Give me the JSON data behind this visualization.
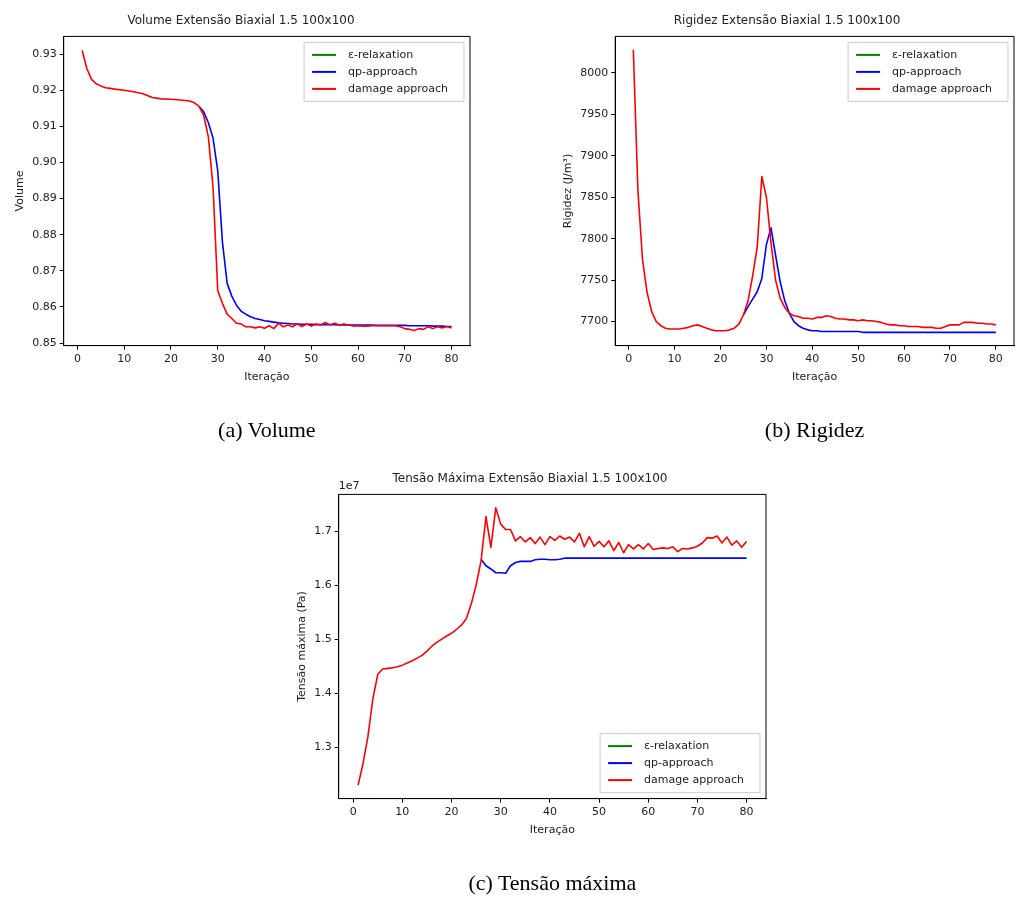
{
  "chart_data": [
    {
      "type": "line",
      "title": "Volume Extensão Biaxial 1.5 100x100",
      "xlabel": "Iteração",
      "ylabel": "Volume",
      "annotations": [
        "(a) Volume"
      ],
      "legend": "top right",
      "xlim": [
        -2.95,
        83.95
      ],
      "xticks": [
        0,
        10,
        20,
        30,
        40,
        50,
        60,
        70,
        80
      ],
      "ylim": [
        0.8493,
        0.9349
      ],
      "yticks": [
        0.85,
        0.86,
        0.87,
        0.88,
        0.89,
        {
          "value": 0.9,
          "label": "0.90"
        },
        0.91,
        0.92,
        0.93
      ],
      "x": [
        1,
        2,
        3,
        4,
        5,
        6,
        7,
        8,
        10,
        12,
        14,
        16,
        18,
        20,
        22,
        24,
        25,
        26,
        27,
        28,
        29,
        30,
        31,
        32,
        33,
        34,
        35,
        36,
        37,
        38,
        39,
        40,
        41,
        42,
        43,
        44,
        45,
        46,
        47,
        48,
        49,
        50,
        51,
        52,
        53,
        54,
        55,
        56,
        57,
        58,
        59,
        60,
        61,
        62,
        63,
        64,
        65,
        66,
        67,
        68,
        69,
        70,
        71,
        72,
        73,
        74,
        75,
        76,
        77,
        78,
        79,
        80
      ],
      "series": [
        {
          "name": "ε-relaxation",
          "color": "#008000",
          "values": [
            null,
            null,
            null,
            null,
            null,
            null,
            null,
            null,
            null,
            null,
            null,
            null,
            null,
            null,
            null,
            null,
            null,
            null,
            null,
            null,
            null,
            null,
            null,
            null,
            null,
            null,
            null,
            null,
            null,
            null,
            null,
            null,
            null,
            null,
            null,
            null,
            null,
            null,
            null,
            null,
            null,
            null,
            null,
            null,
            null,
            null,
            null,
            null,
            null,
            null,
            null,
            null,
            null,
            null,
            null,
            null,
            null,
            null,
            null,
            null,
            null,
            null,
            null,
            null,
            null,
            null,
            null,
            null,
            null,
            null,
            null,
            null
          ]
        },
        {
          "name": "qp-approach",
          "color": "#0000ff",
          "values": [
            null,
            null,
            null,
            null,
            null,
            null,
            null,
            null,
            null,
            null,
            null,
            null,
            null,
            null,
            null,
            null,
            null,
            0.9155,
            0.914,
            0.911,
            0.9067,
            0.8977,
            0.878,
            0.8666,
            0.863,
            0.8605,
            0.8588,
            0.858,
            0.8573,
            0.8568,
            0.8565,
            0.8562,
            0.856,
            0.8558,
            0.8556,
            0.8555,
            0.8554,
            0.8553,
            0.8553,
            0.8552,
            0.8552,
            0.8552,
            0.8551,
            0.8551,
            0.8551,
            0.8551,
            0.8551,
            0.855,
            0.855,
            0.855,
            0.855,
            0.855,
            0.855,
            0.855,
            0.855,
            0.8549,
            0.8549,
            0.8549,
            0.8549,
            0.8549,
            0.8549,
            0.8549,
            0.8548,
            0.8548,
            0.8548,
            0.8548,
            0.8548,
            0.8547,
            0.8547,
            0.8547,
            0.8546,
            0.8546
          ]
        },
        {
          "name": "damage approach",
          "color": "#ff0000",
          "values": [
            0.931,
            0.926,
            0.923,
            0.9218,
            0.9212,
            0.9207,
            0.9205,
            0.9203,
            0.92,
            0.9196,
            0.919,
            0.918,
            0.9176,
            0.9175,
            0.9173,
            0.917,
            0.9165,
            0.9155,
            0.913,
            0.907,
            0.893,
            0.8645,
            0.861,
            0.858,
            0.8568,
            0.8555,
            0.8553,
            0.8545,
            0.8545,
            0.8542,
            0.8545,
            0.8541,
            0.8548,
            0.854,
            0.8555,
            0.8545,
            0.855,
            0.8545,
            0.8553,
            0.8546,
            0.8553,
            0.8547,
            0.8553,
            0.855,
            0.8557,
            0.855,
            0.8555,
            0.855,
            0.8553,
            0.855,
            0.8547,
            0.8548,
            0.8547,
            0.8547,
            0.8548,
            0.8548,
            0.8548,
            0.8548,
            0.8548,
            0.8548,
            0.8545,
            0.854,
            0.8538,
            0.8535,
            0.854,
            0.8538,
            0.8545,
            0.854,
            0.8545,
            0.8542,
            0.8546,
            0.8542
          ]
        }
      ]
    },
    {
      "type": "line",
      "title": "Rigidez Extensão Biaxial 1.5 100x100",
      "xlabel": "Iteração",
      "ylabel": "Rigidez (J/m³)",
      "annotations": [
        "(b) Rigidez"
      ],
      "legend": "top right",
      "xlim": [
        -2.95,
        83.95
      ],
      "xticks": [
        0,
        10,
        20,
        30,
        40,
        50,
        60,
        70,
        80
      ],
      "ylim": [
        7671,
        8044
      ],
      "yticks": [
        7700,
        7750,
        7800,
        7850,
        7900,
        7950,
        8000
      ],
      "x": [
        1,
        2,
        3,
        4,
        5,
        6,
        7,
        8,
        9,
        10,
        11,
        12,
        13,
        14,
        15,
        16,
        17,
        18,
        19,
        20,
        21,
        22,
        23,
        24,
        25,
        26,
        27,
        28,
        29,
        30,
        31,
        32,
        33,
        34,
        35,
        36,
        37,
        38,
        39,
        40,
        41,
        42,
        43,
        44,
        45,
        46,
        47,
        48,
        49,
        50,
        51,
        52,
        53,
        54,
        55,
        56,
        57,
        58,
        59,
        60,
        61,
        62,
        63,
        64,
        65,
        66,
        67,
        68,
        69,
        70,
        71,
        72,
        73,
        74,
        75,
        76,
        77,
        78,
        79,
        80
      ],
      "series": [
        {
          "name": "ε-relaxation",
          "color": "#008000",
          "values": [
            null,
            null,
            null,
            null,
            null,
            null,
            null,
            null,
            null,
            null,
            null,
            null,
            null,
            null,
            null,
            null,
            null,
            null,
            null,
            null,
            null,
            null,
            null,
            null,
            null,
            null,
            null,
            null,
            null,
            null,
            null,
            null,
            null,
            null,
            null,
            null,
            null,
            null,
            null,
            null,
            null,
            null,
            null,
            null,
            null,
            null,
            null,
            null,
            null,
            null,
            null,
            null,
            null,
            null,
            null,
            null,
            null,
            null,
            null,
            null,
            null,
            null,
            null,
            null,
            null,
            null,
            null,
            null,
            null,
            null,
            null,
            null,
            null,
            null,
            null,
            null,
            null,
            null,
            null,
            null
          ]
        },
        {
          "name": "qp-approach",
          "color": "#0000ff",
          "values": [
            null,
            null,
            null,
            null,
            null,
            null,
            null,
            null,
            null,
            null,
            null,
            null,
            null,
            null,
            null,
            null,
            null,
            null,
            null,
            null,
            null,
            null,
            null,
            null,
            7708,
            7718,
            7727,
            7736,
            7752,
            7793,
            7813,
            7780,
            7748,
            7725,
            7710,
            7700,
            7695,
            7692,
            7690,
            7689,
            7689,
            7688,
            7688,
            7688,
            7688,
            7688,
            7688,
            7688,
            7688,
            7688,
            7687,
            7687,
            7687,
            7687,
            7687,
            7687,
            7687,
            7687,
            7687,
            7687,
            7687,
            7687,
            7687,
            7687,
            7687,
            7687,
            7687,
            7687,
            7687,
            7687,
            7687,
            7687,
            7687,
            7687,
            7687,
            7687,
            7687,
            7687,
            7687,
            7687
          ]
        },
        {
          "name": "damage approach",
          "color": "#ff0000",
          "values": [
            8028,
            7858,
            7775,
            7735,
            7712,
            7700,
            7695,
            7692,
            7691,
            7691,
            7691,
            7692,
            7693,
            7695,
            7696,
            7694,
            7692,
            7690,
            7689,
            7689,
            7689,
            7690,
            7692,
            7697,
            7708,
            7725,
            7755,
            7790,
            7875,
            7850,
            7795,
            7750,
            7728,
            7717,
            7710,
            7707,
            7706,
            7704,
            7704,
            7703,
            7705,
            7705,
            7707,
            7706,
            7704,
            7703,
            7703,
            7702,
            7702,
            7701,
            7702,
            7701,
            7701,
            7700,
            7699,
            7697,
            7696,
            7696,
            7695,
            7695,
            7694,
            7694,
            7694,
            7693,
            7693,
            7693,
            7692,
            7692,
            7694,
            7696,
            7696,
            7696,
            7699,
            7699,
            7699,
            7698,
            7698,
            7697,
            7697,
            7696
          ]
        }
      ]
    },
    {
      "type": "line",
      "title": "Tensão Máxima Extensão Biaxial 1.5 100x100",
      "xlabel": "Iteração",
      "ylabel": "Tensão máxima (Pa)",
      "annotations": [
        "1e7",
        "(c) Tensão máxima"
      ],
      "legend": "bottom right",
      "xlim": [
        -2.95,
        83.95
      ],
      "xticks": [
        0,
        10,
        20,
        30,
        40,
        50,
        60,
        70,
        80
      ],
      "ylim": [
        1.205,
        1.768
      ],
      "yticks": [
        1.3,
        1.4,
        1.5,
        1.6,
        1.7
      ],
      "x": [
        1,
        2,
        3,
        4,
        5,
        6,
        7,
        8,
        9,
        10,
        11,
        12,
        13,
        14,
        15,
        16,
        17,
        18,
        19,
        20,
        21,
        22,
        23,
        24,
        25,
        26,
        27,
        28,
        29,
        30,
        31,
        32,
        33,
        34,
        35,
        36,
        37,
        38,
        39,
        40,
        41,
        42,
        43,
        44,
        45,
        46,
        47,
        48,
        49,
        50,
        51,
        52,
        53,
        54,
        55,
        56,
        57,
        58,
        59,
        60,
        61,
        62,
        63,
        64,
        65,
        66,
        67,
        68,
        69,
        70,
        71,
        72,
        73,
        74,
        75,
        76,
        77,
        78,
        79,
        80
      ],
      "series": [
        {
          "name": "ε-relaxation",
          "color": "#008000",
          "values": [
            null,
            null,
            null,
            null,
            null,
            null,
            null,
            null,
            null,
            null,
            null,
            null,
            null,
            null,
            null,
            null,
            null,
            null,
            null,
            null,
            null,
            null,
            null,
            null,
            null,
            null,
            null,
            null,
            null,
            null,
            null,
            null,
            null,
            null,
            null,
            null,
            null,
            null,
            null,
            null,
            null,
            null,
            null,
            null,
            null,
            null,
            null,
            null,
            null,
            null,
            null,
            null,
            null,
            null,
            null,
            null,
            null,
            null,
            null,
            null,
            null,
            null,
            null,
            null,
            null,
            null,
            null,
            null,
            null,
            null,
            null,
            null,
            null,
            null,
            null,
            null,
            null,
            null,
            null,
            null
          ]
        },
        {
          "name": "qp-approach",
          "color": "#0000ff",
          "values": [
            null,
            null,
            null,
            null,
            null,
            null,
            null,
            null,
            null,
            null,
            null,
            null,
            null,
            null,
            null,
            null,
            null,
            null,
            null,
            null,
            null,
            null,
            null,
            null,
            null,
            1.648,
            1.636,
            1.63,
            1.623,
            1.623,
            1.622,
            1.636,
            1.642,
            1.644,
            1.644,
            1.644,
            1.647,
            1.648,
            1.648,
            1.647,
            1.647,
            1.648,
            1.65,
            1.65,
            1.65,
            1.65,
            1.65,
            1.65,
            1.65,
            1.65,
            1.65,
            1.65,
            1.65,
            1.65,
            1.65,
            1.65,
            1.65,
            1.65,
            1.65,
            1.65,
            1.65,
            1.65,
            1.65,
            1.65,
            1.65,
            1.65,
            1.65,
            1.65,
            1.65,
            1.65,
            1.65,
            1.65,
            1.65,
            1.65,
            1.65,
            1.65,
            1.65,
            1.65,
            1.65,
            1.65
          ]
        },
        {
          "name": "damage approach",
          "color": "#ff0000",
          "values": [
            1.23,
            1.27,
            1.32,
            1.39,
            1.435,
            1.445,
            1.446,
            1.447,
            1.449,
            1.452,
            1.456,
            1.46,
            1.465,
            1.47,
            1.478,
            1.487,
            1.494,
            1.5,
            1.506,
            1.511,
            1.518,
            1.526,
            1.538,
            1.565,
            1.6,
            1.645,
            1.727,
            1.67,
            1.743,
            1.713,
            1.703,
            1.703,
            1.682,
            1.69,
            1.68,
            1.688,
            1.677,
            1.689,
            1.675,
            1.69,
            1.683,
            1.691,
            1.685,
            1.689,
            1.68,
            1.696,
            1.671,
            1.69,
            1.672,
            1.681,
            1.671,
            1.682,
            1.664,
            1.679,
            1.66,
            1.675,
            1.667,
            1.675,
            1.667,
            1.677,
            1.666,
            1.668,
            1.669,
            1.668,
            1.671,
            1.662,
            1.668,
            1.667,
            1.669,
            1.672,
            1.678,
            1.688,
            1.687,
            1.691,
            1.678,
            1.689,
            1.674,
            1.682,
            1.67,
            1.681
          ]
        }
      ]
    }
  ]
}
